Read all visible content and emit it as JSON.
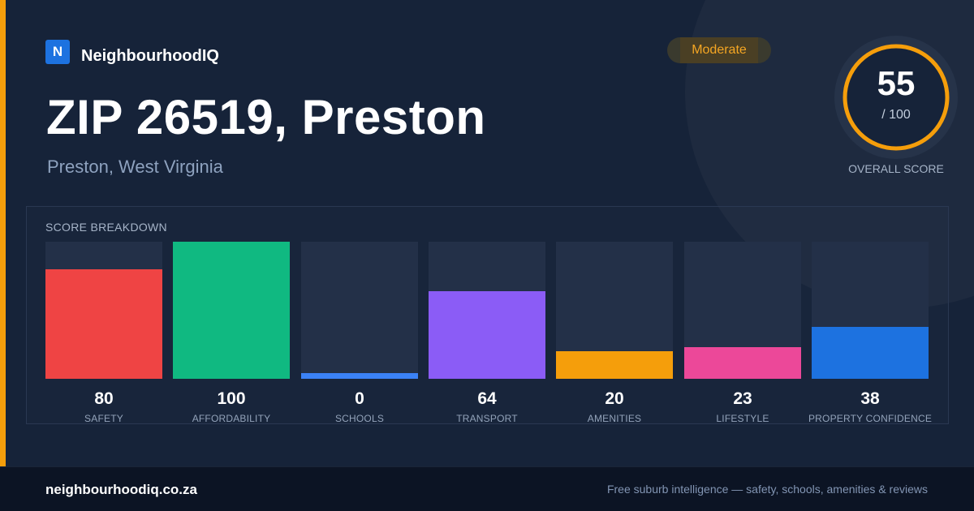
{
  "brand": {
    "logo_letter": "N",
    "name": "NeighbourhoodIQ"
  },
  "rating_badge": "Moderate",
  "title": "ZIP 26519, Preston",
  "subtitle": "Preston, West Virginia",
  "overall_score": {
    "value": "55",
    "max_label": "/ 100",
    "fraction": 0.55,
    "caption": "OVERALL SCORE"
  },
  "breakdown": {
    "title": "SCORE BREAKDOWN",
    "items": [
      {
        "label": "SAFETY",
        "value": "80",
        "color": "#ef4444"
      },
      {
        "label": "AFFORDABILITY",
        "value": "100",
        "color": "#10b981"
      },
      {
        "label": "SCHOOLS",
        "value": "0",
        "color": "#3b82f6"
      },
      {
        "label": "TRANSPORT",
        "value": "64",
        "color": "#8b5cf6"
      },
      {
        "label": "AMENITIES",
        "value": "20",
        "color": "#f59e0b"
      },
      {
        "label": "LIFESTYLE",
        "value": "23",
        "color": "#ec4899"
      },
      {
        "label": "PROPERTY CONFIDENCE",
        "value": "38",
        "color": "#1d72e0"
      }
    ]
  },
  "footer": {
    "domain": "neighbourhoodiq.co.za",
    "tagline": "Free suburb intelligence — safety, schools, amenities & reviews"
  },
  "colors": {
    "accent": "#f59e0b",
    "background": "#162339",
    "brand": "#1d72e0"
  }
}
